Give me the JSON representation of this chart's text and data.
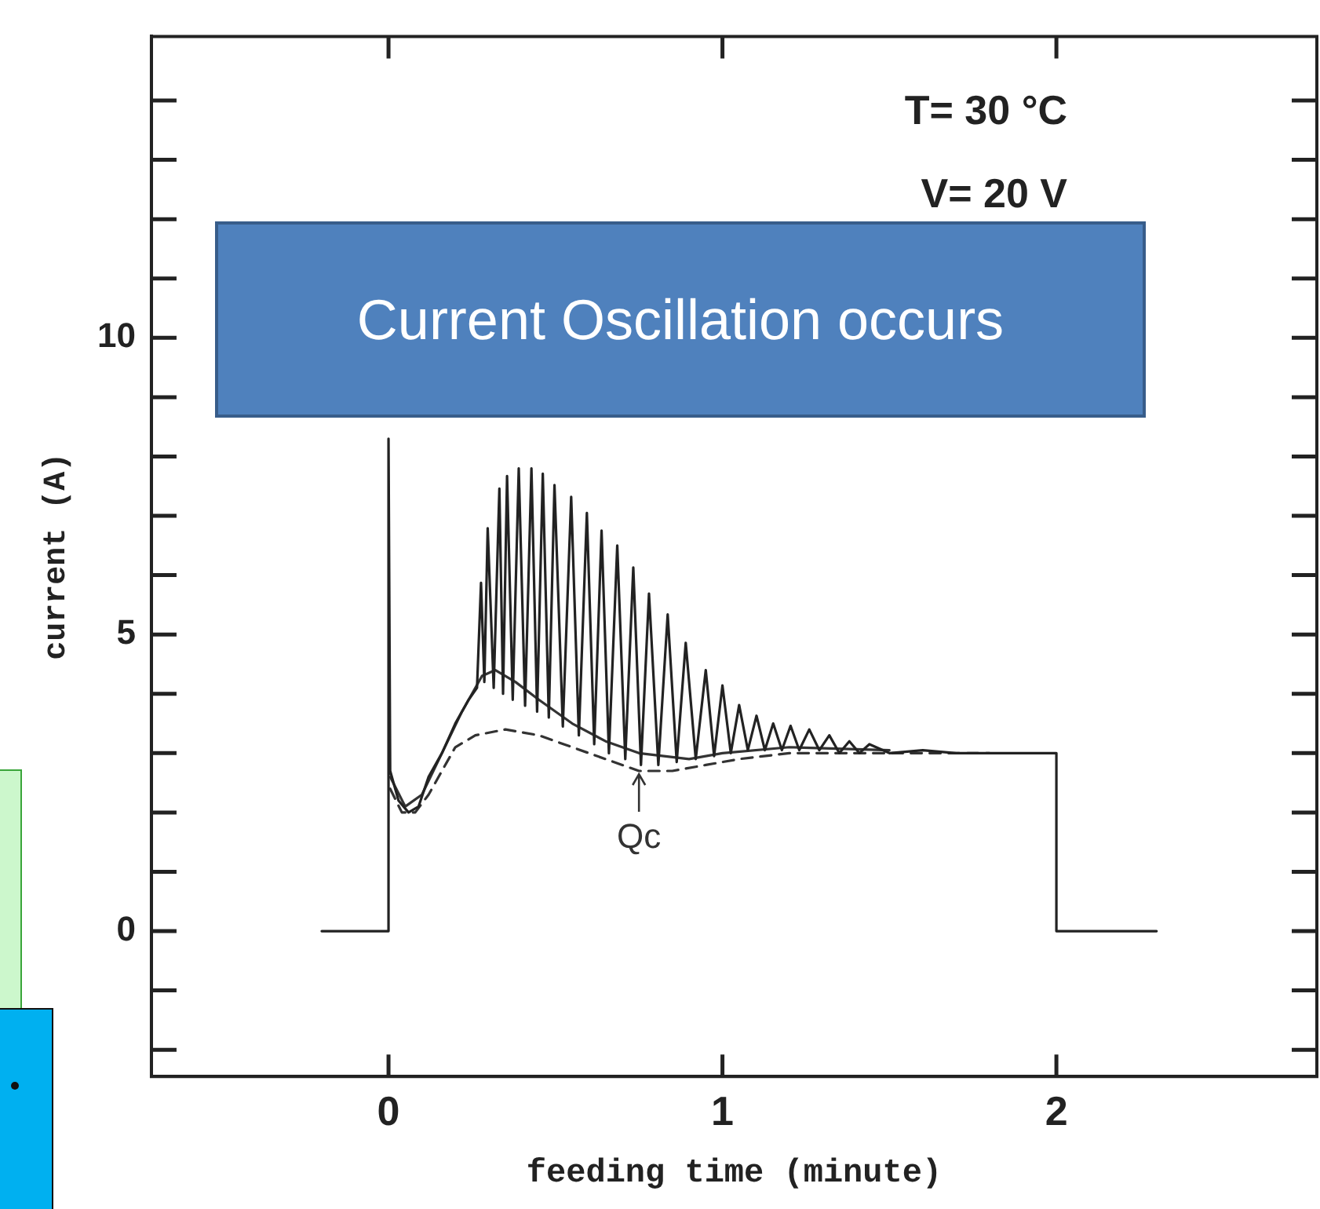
{
  "chart_data": {
    "type": "line",
    "xlabel": "feeding time (minute)",
    "ylabel": "current (A)",
    "xlim": [
      -0.71,
      2.78
    ],
    "ylim": [
      -2.45,
      15.08
    ],
    "xticks": [
      0,
      1,
      2
    ],
    "yticks": [
      {
        "value": -2,
        "label": null
      },
      {
        "value": -1,
        "label": null
      },
      0,
      {
        "value": 1,
        "label": null
      },
      {
        "value": 2,
        "label": null
      },
      {
        "value": 3,
        "label": null
      },
      {
        "value": 4,
        "label": null
      },
      5,
      {
        "value": 6,
        "label": null
      },
      {
        "value": 7,
        "label": null
      },
      {
        "value": 8,
        "label": null
      },
      {
        "value": 9,
        "label": null
      },
      10,
      {
        "value": 11,
        "label": null
      },
      {
        "value": 12,
        "label": null
      },
      {
        "value": 13,
        "label": null
      },
      {
        "value": 14,
        "label": null
      }
    ],
    "grid": false,
    "legend": false,
    "marker": "none",
    "line_style": "solid",
    "annotations": [
      "T= 30 °C",
      "V= 20 V",
      "Current Oscillation occurs",
      {
        "text": "Qc",
        "x": 0.75,
        "y": 2.7
      }
    ],
    "series": [
      {
        "color": "#222222",
        "x": [
          -0.2,
          0,
          0,
          0.005,
          0.03,
          0.06,
          0.09,
          0.12,
          0.16,
          0.2,
          0.24,
          0.265,
          0.277,
          0.287,
          0.297,
          0.315,
          0.332,
          0.343,
          0.355,
          0.372,
          0.39,
          0.409,
          0.428,
          0.445,
          0.462,
          0.48,
          0.497,
          0.522,
          0.547,
          0.57,
          0.594,
          0.616,
          0.638,
          0.66,
          0.685,
          0.709,
          0.733,
          0.756,
          0.78,
          0.808,
          0.836,
          0.863,
          0.89,
          0.92,
          0.95,
          0.975,
          1.0,
          1.025,
          1.05,
          1.076,
          1.102,
          1.127,
          1.152,
          1.178,
          1.204,
          1.23,
          1.26,
          1.29,
          1.32,
          1.35,
          1.38,
          1.41,
          1.44,
          1.5,
          1.6,
          1.7,
          1.8,
          2.0,
          2.0,
          2.3
        ],
        "values": [
          0,
          0,
          8.3,
          2.7,
          2.2,
          2.0,
          2.1,
          2.6,
          3.0,
          3.5,
          3.9,
          4.1,
          5.87,
          4.2,
          6.79,
          4.1,
          7.46,
          4.0,
          7.67,
          3.9,
          7.8,
          3.8,
          7.8,
          3.7,
          7.71,
          3.6,
          7.52,
          3.45,
          7.32,
          3.3,
          7.05,
          3.15,
          6.75,
          3.0,
          6.5,
          2.9,
          6.13,
          2.8,
          5.69,
          2.8,
          5.34,
          2.85,
          4.86,
          2.9,
          4.4,
          2.95,
          4.14,
          3.0,
          3.81,
          3.05,
          3.63,
          3.05,
          3.5,
          3.05,
          3.46,
          3.05,
          3.4,
          3.05,
          3.3,
          3.0,
          3.2,
          3.0,
          3.15,
          3.0,
          3.05,
          3.0,
          3.0,
          3.0,
          0,
          0
        ]
      },
      {
        "color": "#333333",
        "x": [
          0.005,
          0.05,
          0.1,
          0.16,
          0.22,
          0.28,
          0.32,
          0.38,
          0.45,
          0.55,
          0.65,
          0.75,
          0.9,
          1.0,
          1.2,
          1.5
        ],
        "values": [
          2.6,
          2.1,
          2.3,
          3.0,
          3.7,
          4.3,
          4.4,
          4.2,
          3.9,
          3.5,
          3.2,
          3.0,
          2.9,
          3.0,
          3.1,
          3.05
        ]
      },
      {
        "color": "#333333",
        "line_style": "dashed",
        "x": [
          0.005,
          0.04,
          0.08,
          0.12,
          0.16,
          0.2,
          0.26,
          0.35,
          0.45,
          0.55,
          0.65,
          0.75,
          0.85,
          0.95,
          1.05,
          1.2,
          1.5,
          1.8
        ],
        "values": [
          2.4,
          2.0,
          2.0,
          2.3,
          2.7,
          3.1,
          3.3,
          3.4,
          3.3,
          3.1,
          2.9,
          2.7,
          2.7,
          2.8,
          2.9,
          3.0,
          3.0,
          3.0
        ]
      }
    ]
  }
}
